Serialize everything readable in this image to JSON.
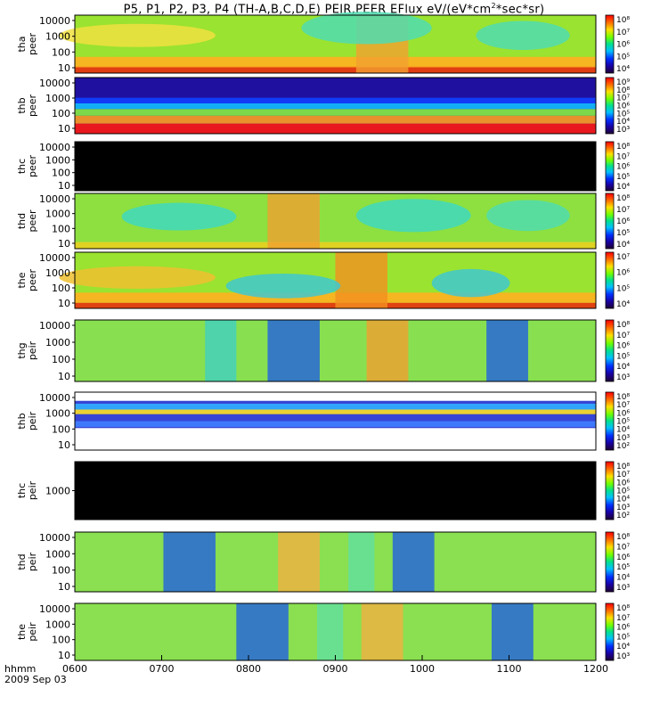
{
  "title": {
    "before": "P5, P1, P2, P3, P4 (TH-A,B,C,D,E) PEIR,PEER EFlux eV/(eV*cm",
    "sup": "2",
    "after": "*sec*sr)"
  },
  "footer": {
    "unit": "hhmm",
    "date": "2009 Sep 03"
  },
  "chart_data": {
    "type": "heatmap",
    "x_ticks": [
      "0600",
      "0700",
      "0800",
      "0900",
      "1000",
      "1100",
      "1200"
    ],
    "xlim": [
      "0600",
      "1200"
    ],
    "panels": [
      {
        "id": "tha-peer",
        "label": [
          "tha",
          "peer"
        ],
        "y_ticks": [
          "10000",
          "1000",
          "100",
          "10"
        ],
        "cb_ticks": [
          "10⁸",
          "10⁷",
          "10⁶",
          "10⁵",
          "10⁴"
        ]
      },
      {
        "id": "thb-peer",
        "label": [
          "thb",
          "peer"
        ],
        "y_ticks": [
          "10000",
          "1000",
          "100",
          "10"
        ],
        "cb_ticks": [
          "10⁹",
          "10⁸",
          "10⁷",
          "10⁶",
          "10⁵",
          "10⁴",
          "10³"
        ]
      },
      {
        "id": "thc-peer",
        "label": [
          "thc",
          "peer"
        ],
        "y_ticks": [
          "10000",
          "1000",
          "100",
          "10"
        ],
        "cb_ticks": [
          "10⁸",
          "10⁷",
          "10⁶",
          "10⁵",
          "10⁴"
        ]
      },
      {
        "id": "thd-peer",
        "label": [
          "thd",
          "peer"
        ],
        "y_ticks": [
          "10000",
          "1000",
          "100",
          "10"
        ],
        "cb_ticks": [
          "10⁸",
          "10⁷",
          "10⁶",
          "10⁵",
          "10⁴"
        ]
      },
      {
        "id": "the-peer",
        "label": [
          "the",
          "peer"
        ],
        "y_ticks": [
          "10000",
          "1000",
          "100",
          "10"
        ],
        "cb_ticks": [
          "10⁷",
          "10⁶",
          "10⁵",
          "10⁴"
        ]
      },
      {
        "id": "thg-peir",
        "label": [
          "thg",
          "peir"
        ],
        "y_ticks": [
          "10000",
          "1000",
          "100",
          "10"
        ],
        "cb_ticks": [
          "10⁸",
          "10⁷",
          "10⁶",
          "10⁵",
          "10⁴",
          "10³"
        ]
      },
      {
        "id": "thb-peir",
        "label": [
          "thb",
          "peir"
        ],
        "y_ticks": [
          "10000",
          "1000",
          "100",
          "10"
        ],
        "cb_ticks": [
          "10⁸",
          "10⁷",
          "10⁶",
          "10⁵",
          "10⁴",
          "10³",
          "10²"
        ]
      },
      {
        "id": "thc-peir",
        "label": [
          "thc",
          "peir"
        ],
        "y_ticks": [
          "1000"
        ],
        "cb_ticks": [
          "10⁸",
          "10⁷",
          "10⁶",
          "10⁵",
          "10⁴",
          "10³",
          "10²"
        ]
      },
      {
        "id": "thd-peir",
        "label": [
          "thd",
          "peir"
        ],
        "y_ticks": [
          "10000",
          "1000",
          "100",
          "10"
        ],
        "cb_ticks": [
          "10⁸",
          "10⁷",
          "10⁶",
          "10⁵",
          "10⁴",
          "10³"
        ]
      },
      {
        "id": "the-peir",
        "label": [
          "the",
          "peir"
        ],
        "y_ticks": [
          "10000",
          "1000",
          "100",
          "10"
        ],
        "cb_ticks": [
          "10⁸",
          "10⁷",
          "10⁶",
          "10⁵",
          "10⁴",
          "10³"
        ]
      }
    ]
  }
}
